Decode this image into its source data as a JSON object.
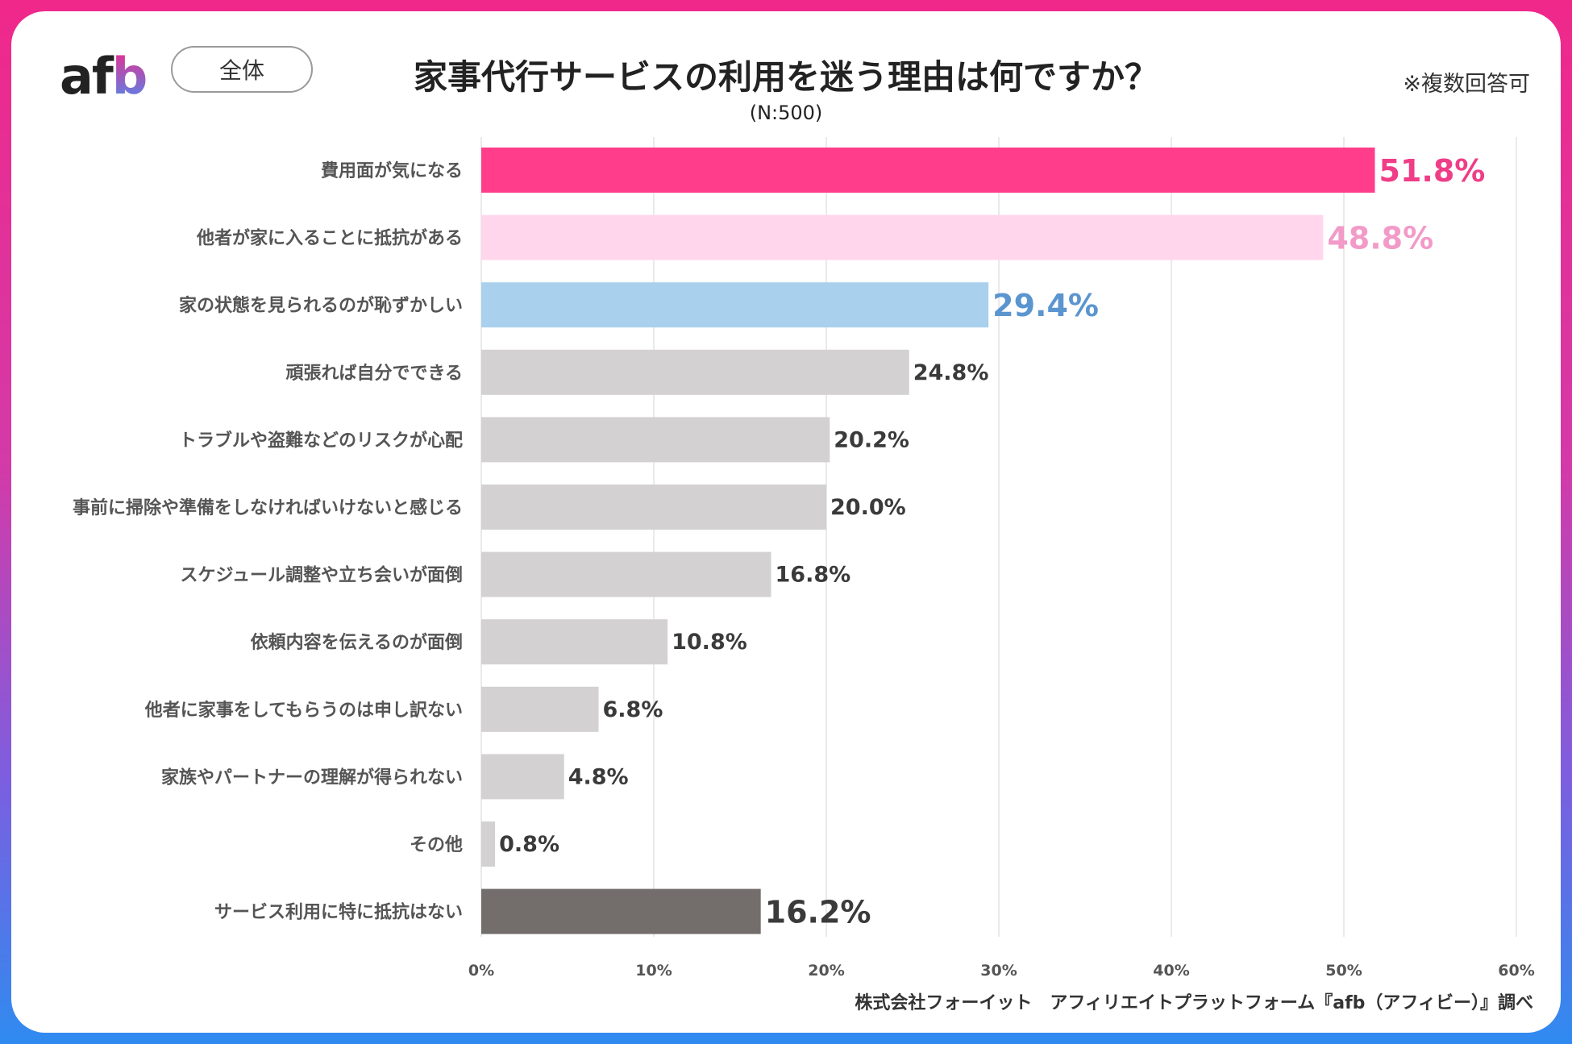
{
  "logo_text": {
    "prefix": "af",
    "suffix": "b"
  },
  "scope": "全体",
  "title": "家事代行サービスの利用を迷う理由は何ですか？",
  "subtitle": "(N:500)",
  "note": "※複数回答可",
  "source": "株式会社フォーイット　アフィリエイトプラットフォーム『afb（アフィビー）』調べ",
  "colors": {
    "rank1": "#ff3d8b",
    "rank2": "#ffd6ec",
    "rank3": "#a9d0ec",
    "other": "#d4d1d2",
    "no_resistance": "#736e6b",
    "rank1_label": "#ef3d87",
    "rank2_label": "#f29ac8",
    "rank3_label": "#5b95cf",
    "default_label": "#3a3a3a",
    "grid": "#e3e3e3"
  },
  "chart_data": {
    "type": "bar",
    "orientation": "horizontal",
    "categories": [
      "費用面が気になる",
      "他者が家に入ることに抵抗がある",
      "家の状態を見られるのが恥ずかしい",
      "頑張れば自分でできる",
      "トラブルや盗難などのリスクが心配",
      "事前に掃除や準備をしなければいけないと感じる",
      "スケジュール調整や立ち会いが面倒",
      "依頼内容を伝えるのが面倒",
      "他者に家事をしてもらうのは申し訳ない",
      "家族やパートナーの理解が得られない",
      "その他",
      "サービス利用に特に抵抗はない"
    ],
    "values": [
      51.8,
      48.8,
      29.4,
      24.8,
      20.2,
      20.0,
      16.8,
      10.8,
      6.8,
      4.8,
      0.8,
      16.2
    ],
    "value_labels": [
      "51.8%",
      "48.8%",
      "29.4%",
      "24.8%",
      "20.2%",
      "20.0%",
      "16.8%",
      "10.8%",
      "6.8%",
      "4.8%",
      "0.8%",
      "16.2%"
    ],
    "bar_color_keys": [
      "rank1",
      "rank2",
      "rank3",
      "other",
      "other",
      "other",
      "other",
      "other",
      "other",
      "other",
      "other",
      "no_resistance"
    ],
    "label_color_keys": [
      "rank1_label",
      "rank2_label",
      "rank3_label",
      "default_label",
      "default_label",
      "default_label",
      "default_label",
      "default_label",
      "default_label",
      "default_label",
      "default_label",
      "default_label"
    ],
    "emphasized_labels": [
      true,
      true,
      true,
      false,
      false,
      false,
      false,
      false,
      false,
      false,
      false,
      true
    ],
    "x_ticks": [
      0,
      10,
      20,
      30,
      40,
      50,
      60
    ],
    "x_tick_labels": [
      "0%",
      "10%",
      "20%",
      "30%",
      "40%",
      "50%",
      "60%"
    ],
    "xlim": [
      0,
      60
    ],
    "grid": true,
    "unit": "%"
  }
}
